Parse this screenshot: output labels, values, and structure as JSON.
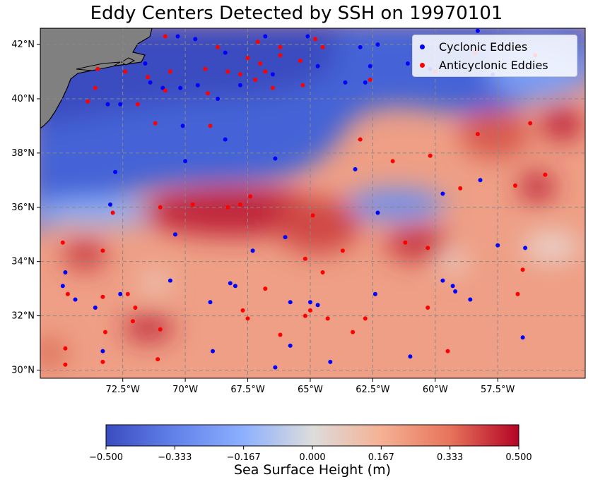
{
  "title": "Eddy Centers Detected by SSH on 19970101",
  "legend": {
    "cyclonic_label": "Cyclonic Eddies",
    "anticyclonic_label": "Anticyclonic Eddies",
    "cyclonic_color": "#0000ff",
    "anticyclonic_color": "#ff0000"
  },
  "map": {
    "extent": {
      "lon": [
        -75.8,
        -54.0
      ],
      "lat": [
        29.7,
        42.6
      ]
    },
    "lon_ticks": [
      {
        "value": -72.5,
        "label": "72.5°W"
      },
      {
        "value": -70.0,
        "label": "70°W"
      },
      {
        "value": -67.5,
        "label": "67.5°W"
      },
      {
        "value": -65.0,
        "label": "65°W"
      },
      {
        "value": -62.5,
        "label": "62.5°W"
      },
      {
        "value": -60.0,
        "label": "60°W"
      },
      {
        "value": -57.5,
        "label": "57.5°W"
      }
    ],
    "lat_ticks": [
      {
        "value": 30,
        "label": "30°N"
      },
      {
        "value": 32,
        "label": "32°N"
      },
      {
        "value": 34,
        "label": "34°N"
      },
      {
        "value": 36,
        "label": "36°N"
      },
      {
        "value": 38,
        "label": "38°N"
      },
      {
        "value": 40,
        "label": "40°N"
      },
      {
        "value": 42,
        "label": "42°N"
      }
    ],
    "grid": true,
    "land_color": "#808080",
    "colormap": "coolwarm"
  },
  "colorbar": {
    "label": "Sea Surface Height (m)",
    "min": -0.5,
    "max": 0.5,
    "ticks": [
      "−0.500",
      "−0.333",
      "−0.167",
      "0.000",
      "0.167",
      "0.333",
      "0.500"
    ]
  },
  "chart_data": {
    "type": "scatter",
    "title": "Eddy Centers Detected by SSH on 19970101",
    "xlabel": "",
    "ylabel": "",
    "xlim": [
      -75.8,
      -54.0
    ],
    "ylim": [
      29.7,
      42.6
    ],
    "series": [
      {
        "name": "Cyclonic Eddies",
        "color": "#0000ff",
        "points": [
          [
            -70.3,
            42.3
          ],
          [
            -69.6,
            42.2
          ],
          [
            -68.4,
            41.7
          ],
          [
            -66.8,
            42.3
          ],
          [
            -65.1,
            42.3
          ],
          [
            -63.0,
            41.9
          ],
          [
            -62.3,
            42.0
          ],
          [
            -58.3,
            42.5
          ],
          [
            -71.6,
            41.3
          ],
          [
            -71.4,
            40.6
          ],
          [
            -70.9,
            40.4
          ],
          [
            -70.2,
            40.4
          ],
          [
            -69.5,
            40.5
          ],
          [
            -68.7,
            40.0
          ],
          [
            -67.8,
            40.5
          ],
          [
            -66.5,
            40.9
          ],
          [
            -64.7,
            41.2
          ],
          [
            -63.6,
            40.6
          ],
          [
            -62.8,
            40.6
          ],
          [
            -62.6,
            41.2
          ],
          [
            -61.1,
            41.3
          ],
          [
            -60.2,
            41.1
          ],
          [
            -57.7,
            40.9
          ],
          [
            -73.1,
            39.8
          ],
          [
            -72.6,
            39.8
          ],
          [
            -70.1,
            39.0
          ],
          [
            -68.4,
            38.5
          ],
          [
            -66.4,
            37.8
          ],
          [
            -63.2,
            37.4
          ],
          [
            -72.8,
            37.3
          ],
          [
            -70.0,
            37.7
          ],
          [
            -62.3,
            35.8
          ],
          [
            -59.7,
            36.5
          ],
          [
            -58.2,
            37.0
          ],
          [
            -73.0,
            36.1
          ],
          [
            -70.4,
            35.0
          ],
          [
            -66.0,
            34.9
          ],
          [
            -67.3,
            34.4
          ],
          [
            -57.5,
            34.6
          ],
          [
            -56.4,
            34.5
          ],
          [
            -74.8,
            33.6
          ],
          [
            -74.9,
            33.1
          ],
          [
            -74.4,
            32.6
          ],
          [
            -73.6,
            32.3
          ],
          [
            -72.6,
            32.8
          ],
          [
            -70.6,
            33.3
          ],
          [
            -68.2,
            33.2
          ],
          [
            -68.0,
            33.1
          ],
          [
            -69.0,
            32.5
          ],
          [
            -65.8,
            32.5
          ],
          [
            -65.0,
            32.5
          ],
          [
            -64.7,
            32.4
          ],
          [
            -62.4,
            32.8
          ],
          [
            -59.7,
            33.3
          ],
          [
            -59.3,
            33.1
          ],
          [
            -59.2,
            32.9
          ],
          [
            -58.6,
            32.6
          ],
          [
            -56.5,
            31.2
          ],
          [
            -73.3,
            30.7
          ],
          [
            -68.9,
            30.7
          ],
          [
            -65.8,
            30.9
          ],
          [
            -66.4,
            30.1
          ],
          [
            -64.2,
            30.3
          ],
          [
            -61.0,
            30.5
          ]
        ]
      },
      {
        "name": "Anticyclonic Eddies",
        "color": "#ff0000",
        "points": [
          [
            -70.8,
            42.3
          ],
          [
            -68.7,
            41.9
          ],
          [
            -67.1,
            42.1
          ],
          [
            -66.2,
            41.9
          ],
          [
            -64.8,
            42.2
          ],
          [
            -67.5,
            41.5
          ],
          [
            -67.0,
            41.3
          ],
          [
            -66.2,
            41.6
          ],
          [
            -65.4,
            41.4
          ],
          [
            -67.8,
            40.9
          ],
          [
            -67.2,
            40.7
          ],
          [
            -66.8,
            41.0
          ],
          [
            -73.5,
            41.1
          ],
          [
            -72.4,
            41.0
          ],
          [
            -71.5,
            40.8
          ],
          [
            -70.6,
            41.0
          ],
          [
            -69.2,
            41.1
          ],
          [
            -68.3,
            41.0
          ],
          [
            -73.6,
            40.4
          ],
          [
            -70.8,
            40.3
          ],
          [
            -69.1,
            40.2
          ],
          [
            -66.5,
            40.4
          ],
          [
            -65.3,
            40.5
          ],
          [
            -64.5,
            41.9
          ],
          [
            -62.6,
            40.7
          ],
          [
            -60.0,
            41.0
          ],
          [
            -58.4,
            41.7
          ],
          [
            -56.0,
            41.6
          ],
          [
            -71.9,
            39.8
          ],
          [
            -73.9,
            39.9
          ],
          [
            -71.2,
            39.1
          ],
          [
            -69.0,
            39.0
          ],
          [
            -63.0,
            38.5
          ],
          [
            -61.7,
            37.7
          ],
          [
            -58.3,
            38.7
          ],
          [
            -56.2,
            39.1
          ],
          [
            -60.2,
            37.9
          ],
          [
            -59.0,
            36.7
          ],
          [
            -56.8,
            36.8
          ],
          [
            -55.6,
            37.2
          ],
          [
            -72.9,
            35.8
          ],
          [
            -71.0,
            36.0
          ],
          [
            -69.7,
            36.1
          ],
          [
            -68.3,
            36.0
          ],
          [
            -67.8,
            36.1
          ],
          [
            -67.4,
            36.4
          ],
          [
            -64.9,
            35.7
          ],
          [
            -63.7,
            34.4
          ],
          [
            -61.2,
            34.7
          ],
          [
            -60.3,
            34.5
          ],
          [
            -56.5,
            33.7
          ],
          [
            -56.7,
            32.8
          ],
          [
            -74.9,
            34.7
          ],
          [
            -73.3,
            34.4
          ],
          [
            -74.7,
            32.8
          ],
          [
            -73.3,
            32.7
          ],
          [
            -72.3,
            32.8
          ],
          [
            -72.0,
            32.3
          ],
          [
            -72.1,
            31.8
          ],
          [
            -71.0,
            31.5
          ],
          [
            -67.7,
            32.2
          ],
          [
            -67.5,
            31.9
          ],
          [
            -66.8,
            33.0
          ],
          [
            -65.2,
            34.1
          ],
          [
            -64.5,
            33.6
          ],
          [
            -65.2,
            32.0
          ],
          [
            -65.0,
            32.2
          ],
          [
            -64.3,
            31.9
          ],
          [
            -62.8,
            31.9
          ],
          [
            -63.3,
            31.4
          ],
          [
            -66.2,
            31.3
          ],
          [
            -60.3,
            32.3
          ],
          [
            -59.5,
            30.7
          ],
          [
            -74.8,
            30.8
          ],
          [
            -74.8,
            30.2
          ],
          [
            -73.2,
            31.4
          ],
          [
            -73.3,
            30.3
          ],
          [
            -71.1,
            30.4
          ]
        ]
      }
    ]
  }
}
